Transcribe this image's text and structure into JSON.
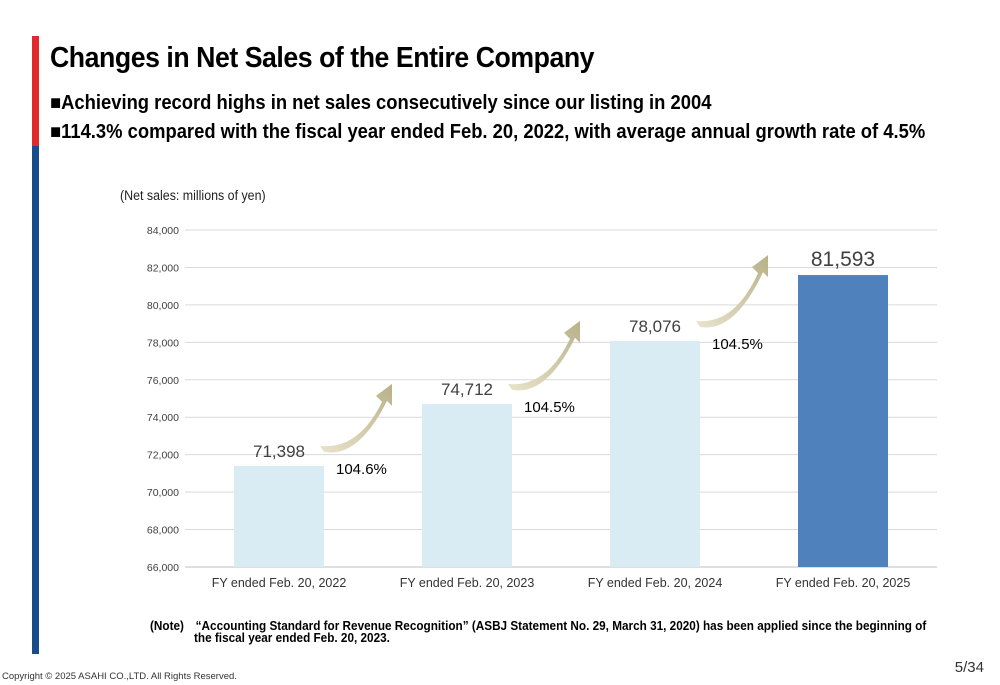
{
  "title": "Changes in Net Sales of the Entire Company",
  "bullets": [
    "■Achieving record highs in net sales consecutively since our listing in 2004",
    "■114.3% compared with the fiscal year ended Feb. 20, 2022, with average annual growth rate of 4.5%"
  ],
  "unit_label": "(Net sales: millions of yen)",
  "note": {
    "line1": "(Note)　“Accounting Standard for Revenue Recognition” (ASBJ Statement No. 29, March 31, 2020) has been applied since the beginning of",
    "line2": "the fiscal year ended Feb. 20, 2023."
  },
  "copyright": "Copyright © 2025 ASAHI CO.,LTD. All Rights Reserved.",
  "page_number": "5/34",
  "colors": {
    "bar_light": "#daecf3",
    "bar_highlight": "#4f81bd",
    "arrow": "#c5bf99",
    "gridline": "#d9d9d9",
    "accent_red": "#e0282e",
    "accent_blue": "#1a4c8c"
  },
  "chart_data": {
    "type": "bar",
    "title": "",
    "xlabel": "",
    "ylabel": "Net sales (millions of yen)",
    "categories": [
      "FY ended Feb. 20, 2022",
      "FY ended Feb. 20, 2023",
      "FY ended Feb. 20, 2024",
      "FY ended Feb. 20, 2025"
    ],
    "values": [
      71398,
      74712,
      78076,
      81593
    ],
    "value_labels": [
      "71,398",
      "74,712",
      "78,076",
      "81,593"
    ],
    "highlighted_index": 3,
    "ylim": [
      66000,
      84000
    ],
    "yticks": [
      66000,
      68000,
      70000,
      72000,
      74000,
      76000,
      78000,
      80000,
      82000,
      84000
    ],
    "ytick_labels": [
      "66,000",
      "68,000",
      "70,000",
      "72,000",
      "74,000",
      "76,000",
      "78,000",
      "80,000",
      "82,000",
      "84,000"
    ],
    "grid": true,
    "growth_annotations": [
      {
        "from": 0,
        "to": 1,
        "label": "104.6%"
      },
      {
        "from": 1,
        "to": 2,
        "label": "104.5%"
      },
      {
        "from": 2,
        "to": 3,
        "label": "104.5%"
      }
    ]
  }
}
